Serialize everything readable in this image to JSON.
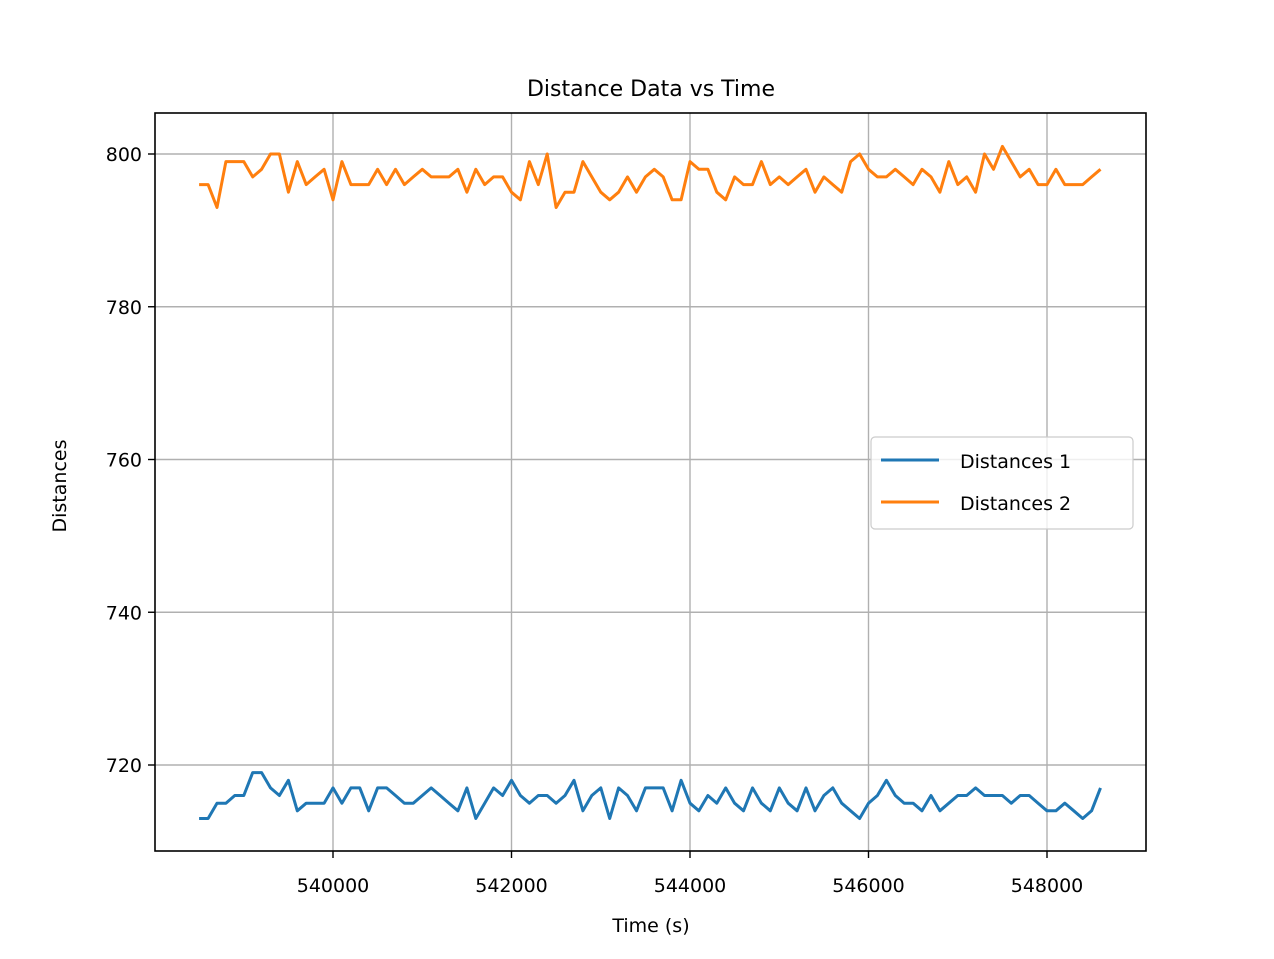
{
  "chart_data": {
    "type": "line",
    "title": "Distance Data vs Time",
    "xlabel": "Time (s)",
    "ylabel": "Distances",
    "xlim": [
      538000,
      549100
    ],
    "ylim": [
      709.3,
      805.3
    ],
    "x_ticks": [
      540000,
      542000,
      544000,
      546000,
      548000
    ],
    "x_tick_labels": [
      "540000",
      "542000",
      "544000",
      "546000",
      "548000"
    ],
    "y_ticks": [
      720,
      740,
      760,
      780,
      800
    ],
    "y_tick_labels": [
      "720",
      "740",
      "760",
      "780",
      "800"
    ],
    "grid": true,
    "legend_position": "center right",
    "x": [
      538500,
      538600,
      538700,
      538800,
      538900,
      539000,
      539100,
      539200,
      539300,
      539400,
      539500,
      539600,
      539700,
      539800,
      539900,
      540000,
      540100,
      540200,
      540300,
      540400,
      540500,
      540600,
      540700,
      540800,
      540900,
      541000,
      541100,
      541200,
      541300,
      541400,
      541500,
      541600,
      541700,
      541800,
      541900,
      542000,
      542100,
      542200,
      542300,
      542400,
      542500,
      542600,
      542700,
      542800,
      542900,
      543000,
      543100,
      543200,
      543300,
      543400,
      543500,
      543600,
      543700,
      543800,
      543900,
      544000,
      544100,
      544200,
      544300,
      544400,
      544500,
      544600,
      544700,
      544800,
      544900,
      545000,
      545100,
      545200,
      545300,
      545400,
      545500,
      545600,
      545700,
      545800,
      545900,
      546000,
      546100,
      546200,
      546300,
      546400,
      546500,
      546600,
      546700,
      546800,
      546900,
      547000,
      547100,
      547200,
      547300,
      547400,
      547500,
      547600,
      547700,
      547800,
      547900,
      548000,
      548100,
      548200,
      548300,
      548400,
      548500,
      548600
    ],
    "series": [
      {
        "name": "Distances 1",
        "color": "#1f77b4",
        "values": [
          713,
          713,
          715,
          715,
          716,
          716,
          719,
          719,
          717,
          716,
          718,
          714,
          715,
          715,
          715,
          717,
          715,
          717,
          717,
          714,
          717,
          717,
          716,
          715,
          715,
          716,
          717,
          716,
          715,
          714,
          717,
          713,
          715,
          717,
          716,
          718,
          716,
          715,
          716,
          716,
          715,
          716,
          718,
          714,
          716,
          717,
          713,
          717,
          716,
          714,
          717,
          717,
          717,
          714,
          718,
          715,
          714,
          716,
          715,
          717,
          715,
          714,
          717,
          715,
          714,
          717,
          715,
          714,
          717,
          714,
          716,
          717,
          715,
          714,
          713,
          715,
          716,
          718,
          716,
          715,
          715,
          714,
          716,
          714,
          715,
          716,
          716,
          717,
          716,
          716,
          716,
          715,
          716,
          716,
          715,
          714,
          714,
          715,
          714,
          713,
          714,
          717
        ]
      },
      {
        "name": "Distances 2",
        "color": "#ff7f0e",
        "values": [
          796,
          796,
          793,
          799,
          799,
          799,
          797,
          798,
          800,
          800,
          795,
          799,
          796,
          797,
          798,
          794,
          799,
          796,
          796,
          796,
          798,
          796,
          798,
          796,
          797,
          798,
          797,
          797,
          797,
          798,
          795,
          798,
          796,
          797,
          797,
          795,
          794,
          799,
          796,
          800,
          793,
          795,
          795,
          799,
          797,
          795,
          794,
          795,
          797,
          795,
          797,
          798,
          797,
          794,
          794,
          799,
          798,
          798,
          795,
          794,
          797,
          796,
          796,
          799,
          796,
          797,
          796,
          797,
          798,
          795,
          797,
          796,
          795,
          799,
          800,
          798,
          797,
          797,
          798,
          797,
          796,
          798,
          797,
          795,
          799,
          796,
          797,
          795,
          800,
          798,
          801,
          799,
          797,
          798,
          796,
          796,
          798,
          796,
          796,
          796,
          797,
          798
        ]
      }
    ]
  },
  "legend": {
    "items": [
      {
        "label": "Distances 1",
        "color": "#1f77b4"
      },
      {
        "label": "Distances 2",
        "color": "#ff7f0e"
      }
    ]
  }
}
